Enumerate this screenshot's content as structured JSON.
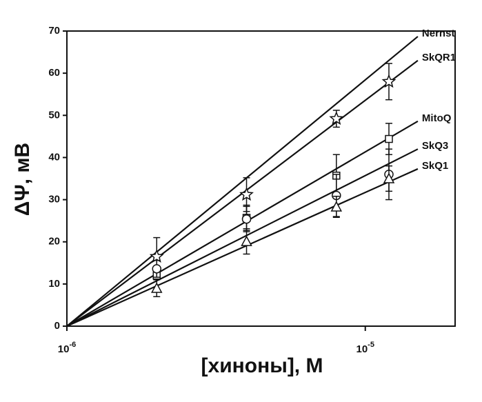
{
  "chart_data": {
    "type": "line",
    "xlabel": "[хиноны], М",
    "ylabel": "ΔΨ, мВ",
    "log_x": true,
    "xlim": [
      1e-06,
      2e-05
    ],
    "ylim": [
      0,
      70
    ],
    "xticks": [
      {
        "value": 1e-06,
        "label": "10",
        "exponent": "-6"
      },
      {
        "value": 1e-05,
        "label": "10",
        "exponent": "-5"
      }
    ],
    "yticks": [
      0,
      10,
      20,
      30,
      40,
      50,
      60,
      70
    ],
    "x": [
      2e-06,
      4e-06,
      8e-06,
      1.2e-05
    ],
    "fit_x": [
      1e-06,
      1.5e-05
    ],
    "color": "#111111",
    "series": [
      {
        "name": "Nernst",
        "marker": "none",
        "fit": [
          0,
          68.7
        ]
      },
      {
        "name": "SkQR1",
        "marker": "star",
        "fit": [
          0,
          63.0
        ],
        "values": [
          16.5,
          31.2,
          49.2,
          58
        ],
        "errors": [
          4.5,
          4,
          2,
          4.3
        ]
      },
      {
        "name": "MitoQ",
        "marker": "square",
        "fit": [
          0,
          48.6
        ],
        "values": [
          12,
          25.7,
          35.7,
          44.4
        ],
        "errors": [
          1,
          3,
          5,
          3.7
        ]
      },
      {
        "name": "SkQ3",
        "marker": "circle",
        "fit": [
          0,
          42
        ],
        "values": [
          13.6,
          25.4,
          31,
          36
        ],
        "errors": [
          2,
          3,
          5,
          6
        ]
      },
      {
        "name": "SkQ1",
        "marker": "triangle",
        "fit": [
          0,
          37.3
        ],
        "values": [
          9,
          20.1,
          28.3,
          35
        ],
        "errors": [
          2,
          3,
          2.5,
          3
        ]
      }
    ]
  }
}
